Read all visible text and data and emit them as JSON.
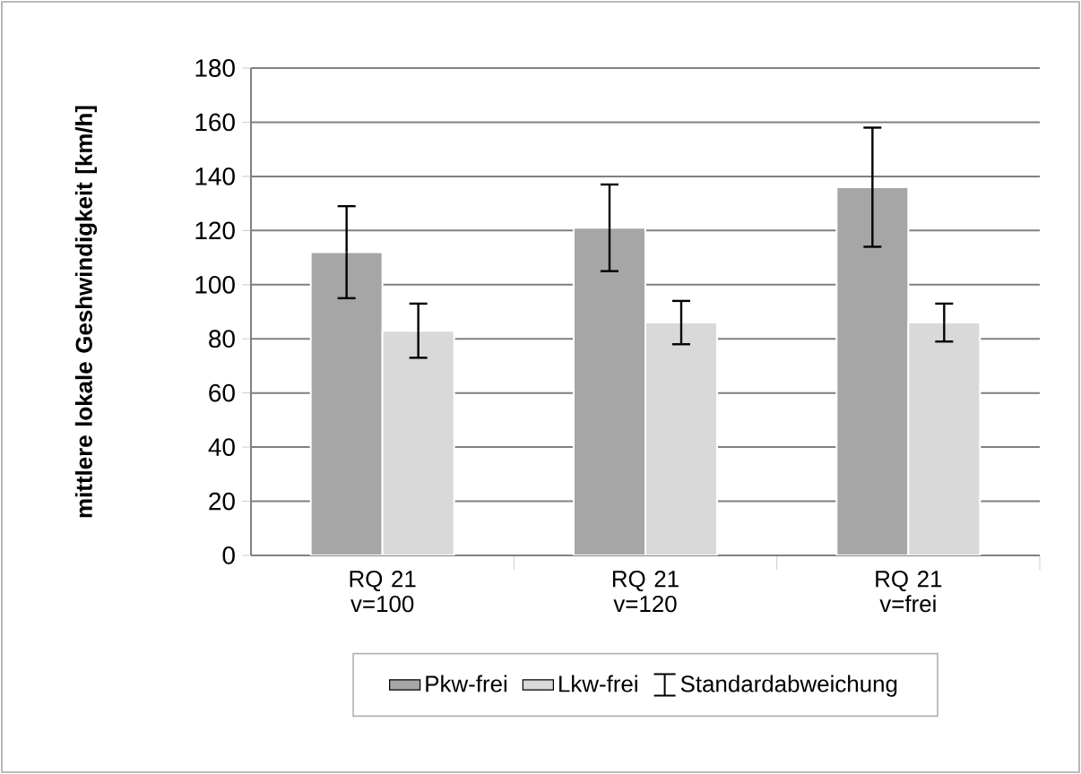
{
  "chart_data": {
    "type": "bar",
    "ylabel": "mittlere lokale Geshwindigkeit [km/h]",
    "categories": [
      "RQ 21 v=100",
      "RQ 21 v=120",
      "RQ 21 v=frei"
    ],
    "series": [
      {
        "name": "Pkw-frei",
        "color": "#a6a6a6",
        "values": [
          112,
          121,
          136
        ],
        "errors": [
          17,
          16,
          22
        ]
      },
      {
        "name": "Lkw-frei",
        "color": "#d9d9d9",
        "values": [
          83,
          86,
          86
        ],
        "errors": [
          10,
          8,
          7
        ]
      }
    ],
    "annotations": [
      "Standardabweichung"
    ],
    "ylim": [
      0,
      180
    ],
    "yticks": [
      0,
      20,
      40,
      60,
      80,
      100,
      120,
      140,
      160,
      180
    ],
    "grid": "y",
    "legend": "bottom"
  }
}
